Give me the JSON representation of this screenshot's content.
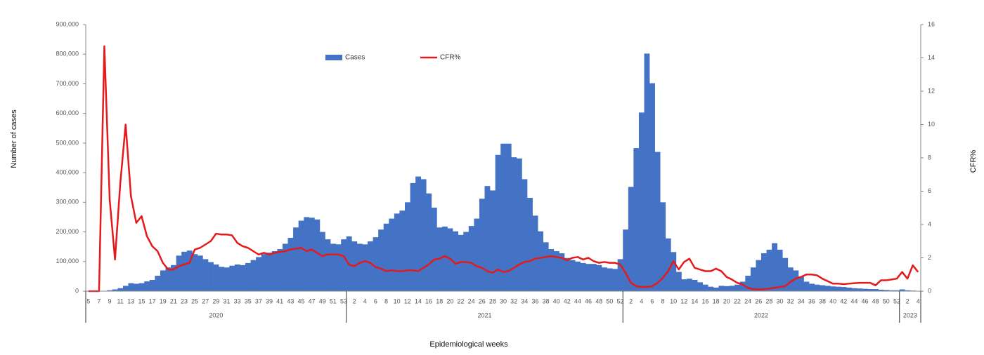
{
  "chart_data": {
    "type": "bar_line",
    "x_label": "Epidemiological weeks",
    "y_label": "Number of cases",
    "y2_label": "CFR%",
    "categories": [
      "5",
      null,
      "7",
      null,
      "9",
      null,
      "11",
      null,
      "13",
      null,
      "15",
      null,
      "17",
      null,
      "19",
      null,
      "21",
      null,
      "23",
      null,
      "25",
      null,
      "27",
      null,
      "29",
      null,
      "31",
      null,
      "33",
      null,
      "35",
      null,
      "37",
      null,
      "39",
      null,
      "41",
      null,
      "43",
      null,
      "45",
      null,
      "47",
      null,
      "49",
      null,
      "51",
      null,
      "53",
      null,
      "2",
      null,
      "4",
      null,
      "6",
      null,
      "8",
      null,
      "10",
      null,
      "12",
      null,
      "14",
      null,
      "16",
      null,
      "18",
      null,
      "20",
      null,
      "22",
      null,
      "24",
      null,
      "26",
      null,
      "28",
      null,
      "30",
      null,
      "32",
      null,
      "34",
      null,
      "36",
      null,
      "38",
      null,
      "40",
      null,
      "42",
      null,
      "44",
      null,
      "46",
      null,
      "48",
      null,
      "50",
      null,
      "52",
      null,
      "2",
      null,
      "4",
      null,
      "6",
      null,
      "8",
      null,
      "10",
      null,
      "12",
      null,
      "14",
      null,
      "16",
      null,
      "18",
      null,
      "20",
      null,
      "22",
      null,
      "24",
      null,
      "26",
      null,
      "28",
      null,
      "30",
      null,
      "32",
      null,
      "34",
      null,
      "36",
      null,
      "38",
      null,
      "40",
      null,
      "42",
      null,
      "44",
      null,
      "46",
      null,
      "48",
      null,
      "50",
      null,
      "52",
      null,
      "2",
      null,
      "4"
    ],
    "x_groups": [
      {
        "label": "2020",
        "span": 49
      },
      {
        "label": "2021",
        "span": 52
      },
      {
        "label": "2022",
        "span": 52
      },
      {
        "label": "2023",
        "span": 4
      }
    ],
    "series": [
      {
        "name": "Cases",
        "type": "bar",
        "color": "#4472c4",
        "values": [
          0,
          0,
          0,
          0,
          3000,
          6000,
          10000,
          18000,
          27000,
          25000,
          27000,
          33000,
          38000,
          52000,
          70000,
          80000,
          88000,
          120000,
          133000,
          137000,
          125000,
          120000,
          108000,
          98000,
          90000,
          82000,
          80000,
          86000,
          90000,
          88000,
          95000,
          105000,
          115000,
          125000,
          130000,
          135000,
          142000,
          160000,
          180000,
          215000,
          238000,
          250000,
          248000,
          242000,
          200000,
          175000,
          160000,
          158000,
          175000,
          185000,
          168000,
          160000,
          158000,
          168000,
          182000,
          208000,
          228000,
          245000,
          262000,
          272000,
          300000,
          365000,
          387000,
          378000,
          330000,
          282000,
          215000,
          218000,
          212000,
          202000,
          190000,
          200000,
          220000,
          245000,
          312000,
          355000,
          340000,
          460000,
          498000,
          498000,
          452000,
          448000,
          378000,
          315000,
          255000,
          202000,
          165000,
          142000,
          135000,
          128000,
          112000,
          105000,
          100000,
          95000,
          92000,
          92000,
          88000,
          80000,
          77000,
          75000,
          108000,
          208000,
          352000,
          483000,
          603000,
          802000,
          702000,
          470000,
          300000,
          178000,
          132000,
          65000,
          40000,
          42000,
          38000,
          30000,
          22000,
          15000,
          12000,
          18000,
          17000,
          18000,
          22000,
          32000,
          52000,
          80000,
          105000,
          128000,
          140000,
          162000,
          140000,
          112000,
          80000,
          70000,
          50000,
          32000,
          25000,
          22000,
          20000,
          18000,
          16000,
          15000,
          14000,
          12000,
          10000,
          9000,
          8000,
          7000,
          7000,
          5000,
          4000,
          3000,
          3000,
          6000,
          3000,
          2000,
          1000
        ]
      },
      {
        "name": "CFR%",
        "type": "line",
        "axis": "y2",
        "color": "#e41a1c",
        "values": [
          0,
          0,
          0,
          14.7,
          5.5,
          1.9,
          6.5,
          10,
          5.7,
          4.1,
          4.5,
          3.3,
          2.7,
          2.4,
          1.7,
          1.3,
          1.3,
          1.5,
          1.6,
          1.7,
          2.5,
          2.6,
          2.8,
          3.0,
          3.45,
          3.4,
          3.4,
          3.35,
          2.9,
          2.7,
          2.6,
          2.4,
          2.2,
          2.3,
          2.2,
          2.3,
          2.35,
          2.4,
          2.5,
          2.55,
          2.6,
          2.4,
          2.5,
          2.3,
          2.1,
          2.2,
          2.2,
          2.2,
          2.1,
          1.6,
          1.5,
          1.7,
          1.8,
          1.7,
          1.45,
          1.35,
          1.2,
          1.25,
          1.2,
          1.2,
          1.25,
          1.25,
          1.2,
          1.4,
          1.6,
          1.9,
          1.95,
          2.1,
          1.95,
          1.65,
          1.75,
          1.75,
          1.7,
          1.5,
          1.4,
          1.2,
          1.1,
          1.3,
          1.15,
          1.2,
          1.4,
          1.6,
          1.75,
          1.8,
          1.95,
          2.0,
          2.05,
          2.1,
          2.05,
          2.0,
          1.85,
          2.0,
          2.05,
          1.9,
          2.0,
          1.8,
          1.7,
          1.75,
          1.7,
          1.7,
          1.6,
          1.1,
          0.5,
          0.3,
          0.25,
          0.25,
          0.3,
          0.5,
          0.8,
          1.2,
          1.8,
          1.3,
          1.75,
          1.95,
          1.4,
          1.3,
          1.2,
          1.2,
          1.35,
          1.2,
          0.85,
          0.7,
          0.5,
          0.4,
          0.2,
          0.12,
          0.1,
          0.12,
          0.15,
          0.2,
          0.25,
          0.3,
          0.55,
          0.75,
          0.85,
          1.0,
          1.0,
          0.95,
          0.75,
          0.6,
          0.45,
          0.45,
          0.42,
          0.45,
          0.48,
          0.5,
          0.5,
          0.5,
          0.35,
          0.65,
          0.65,
          0.7,
          0.75,
          1.15,
          0.75,
          1.55,
          1.15
        ]
      }
    ],
    "ylim": [
      0,
      900000
    ],
    "yticks": [
      0,
      {
        "value": 100000,
        "label": "100,000"
      },
      {
        "value": 200000,
        "label": "200,000"
      },
      {
        "value": 300000,
        "label": "300,000"
      },
      {
        "value": 400000,
        "label": "400,000"
      },
      {
        "value": 500000,
        "label": "500,000"
      },
      {
        "value": 600000,
        "label": "600,000"
      },
      {
        "value": 700000,
        "label": "700,000"
      },
      {
        "value": 800000,
        "label": "800,000"
      },
      {
        "value": 900000,
        "label": "900,000"
      }
    ],
    "y2lim": [
      0,
      16
    ],
    "y2ticks": [
      0,
      2,
      4,
      6,
      8,
      10,
      12,
      14,
      16
    ],
    "legend": "top-center"
  }
}
